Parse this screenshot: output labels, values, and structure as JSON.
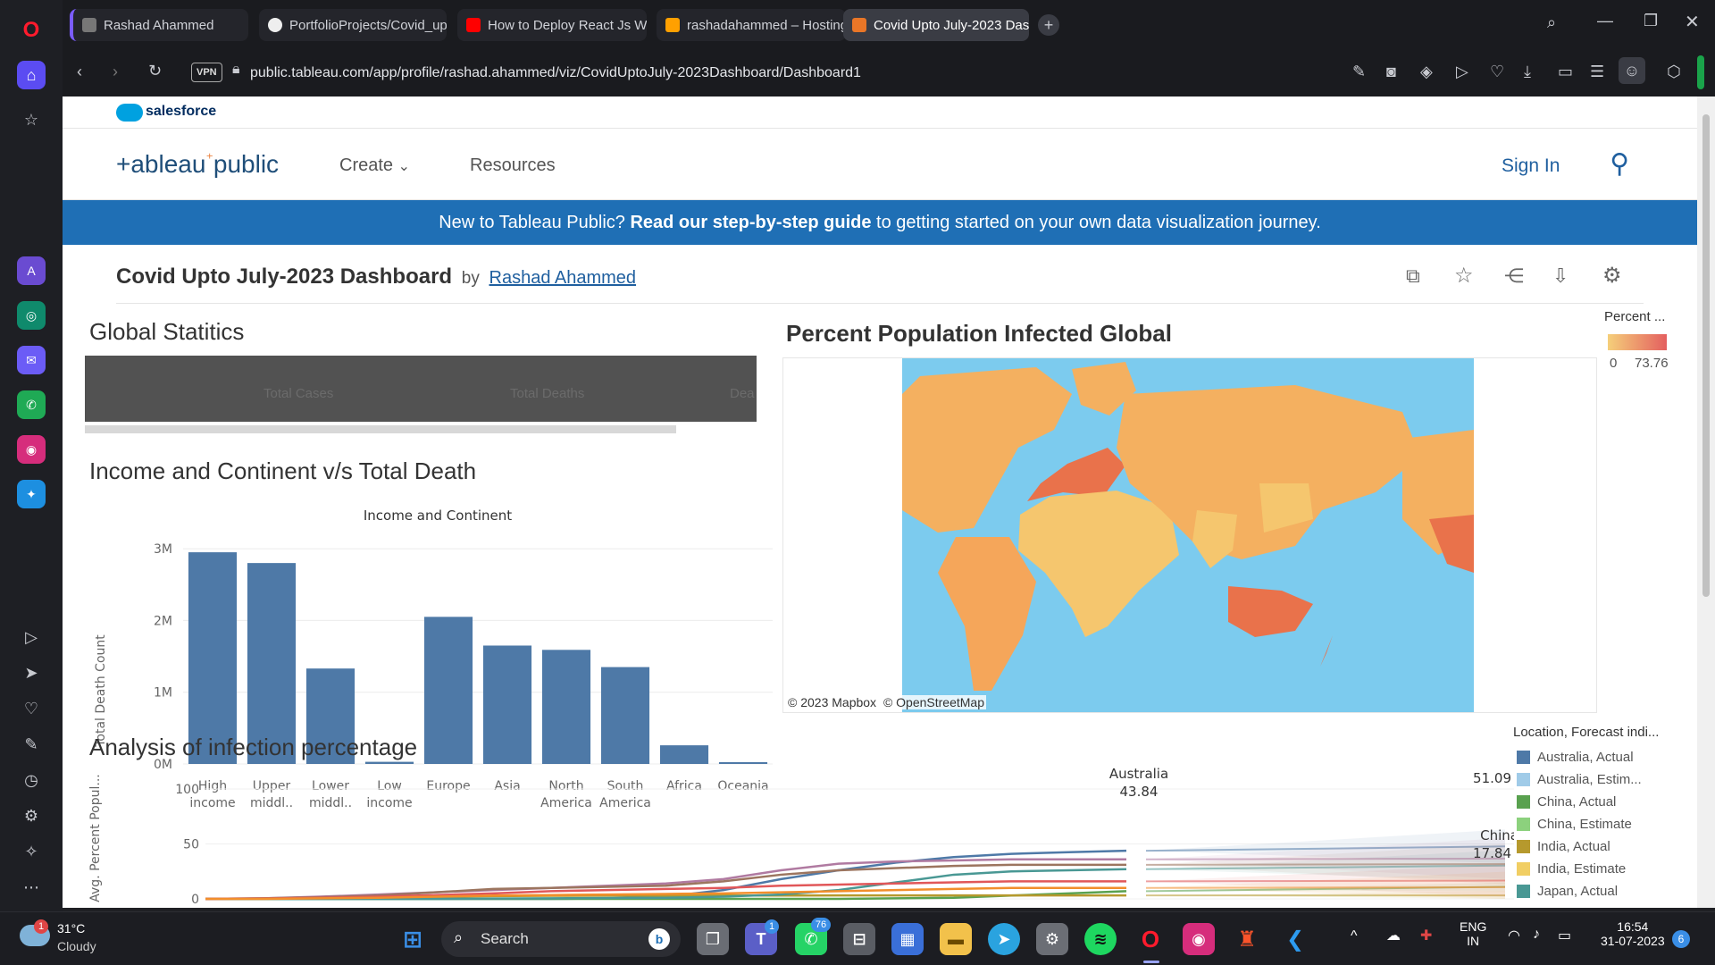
{
  "browser": {
    "tabs": [
      {
        "label": "Rashad Ahammed",
        "icon": "profile-icon"
      },
      {
        "label": "PortfolioProjects/Covid_up",
        "icon": "github-icon"
      },
      {
        "label": "How to Deploy React Js W",
        "icon": "youtube-icon"
      },
      {
        "label": "rashadahammed – Hosting",
        "icon": "firebase-icon"
      },
      {
        "label": "Covid Upto July-2023 Das",
        "icon": "tableau-icon",
        "active": true
      }
    ],
    "vpn_label": "VPN",
    "url": "public.tableau.com/app/profile/rashad.ahammed/viz/CovidUptoJuly-2023Dashboard/Dashboard1"
  },
  "salesforce": {
    "label": "salesforce"
  },
  "nav": {
    "logo_left": "+ableau",
    "logo_right": "public",
    "create": "Create",
    "resources": "Resources",
    "sign_in": "Sign In"
  },
  "banner": {
    "pre": "New to Tableau Public? ",
    "bold": "Read our step-by-step guide",
    "post": " to getting started on your own data visualization journey."
  },
  "viz": {
    "title": "Covid Upto July-2023 Dashboard",
    "by": "by",
    "author": "Rashad Ahammed"
  },
  "global_stats": {
    "title": "Global Statitics",
    "columns": [
      "Total Cases",
      "Total Deaths",
      "Dea"
    ]
  },
  "bar_section": {
    "title": "Income and Continent v/s Total Death"
  },
  "map_section": {
    "title": "Percent Population Infected Global",
    "legend_title": "Percent ...",
    "legend_min": "0",
    "legend_max": "73.76",
    "attribution_1": "© 2023 Mapbox",
    "attribution_2": "© OpenStreetMap",
    "colors": {
      "ocean": "#7ccbee",
      "low": "#f5cf7a",
      "high": "#e45f5f"
    }
  },
  "line_section": {
    "title": "Analysis of infection percentage",
    "legend_title": "Location, Forecast indi...",
    "legend": [
      {
        "label": "Australia, Actual",
        "color": "#4e79a7"
      },
      {
        "label": "Australia, Estim...",
        "color": "#a0cbe8"
      },
      {
        "label": "China, Actual",
        "color": "#59a14f"
      },
      {
        "label": "China, Estimate",
        "color": "#8cd17d"
      },
      {
        "label": "India, Actual",
        "color": "#b6992d"
      },
      {
        "label": "India, Estimate",
        "color": "#f1ce63"
      },
      {
        "label": "Japan, Actual",
        "color": "#499894"
      }
    ],
    "annotations": [
      {
        "name": "Australia",
        "value": "43.84"
      },
      {
        "name": "Australia",
        "value": "51.09"
      },
      {
        "name": "China",
        "value": "17.84"
      }
    ]
  },
  "chart_data": [
    {
      "type": "bar",
      "title": "Income and Continent",
      "xlabel": "",
      "ylabel": "Total Death Count",
      "categories": [
        [
          "High",
          "income"
        ],
        [
          "Upper",
          "middl.."
        ],
        [
          "Lower",
          "middl.."
        ],
        [
          "Low",
          "income"
        ],
        [
          "Europe"
        ],
        [
          "Asia"
        ],
        [
          "North",
          "America"
        ],
        [
          "South",
          "America"
        ],
        [
          "Africa"
        ],
        [
          "Oceania"
        ]
      ],
      "values": [
        2950000,
        2800000,
        1330000,
        30000,
        2050000,
        1650000,
        1590000,
        1350000,
        260000,
        25000
      ],
      "yticks": [
        {
          "v": 0,
          "label": "0M"
        },
        {
          "v": 1000000,
          "label": "1M"
        },
        {
          "v": 2000000,
          "label": "2M"
        },
        {
          "v": 3000000,
          "label": "3M"
        }
      ],
      "ylim": [
        0,
        3200000
      ],
      "color": "#4e79a7",
      "grid": true
    },
    {
      "type": "line",
      "title": "",
      "xlabel": "",
      "ylabel": "Avg. Percent Popul...",
      "yticks": [
        0,
        50,
        100
      ],
      "ylim": [
        0,
        100
      ],
      "series": [
        {
          "name": "Australia, Actual",
          "color": "#4e79a7",
          "values": [
            0,
            0,
            0,
            0,
            0,
            0,
            0,
            0.5,
            2,
            8,
            18,
            26,
            33,
            38,
            41,
            42.5,
            43.84
          ]
        },
        {
          "name": "China, Actual",
          "color": "#59a14f",
          "values": [
            0,
            0,
            0,
            0,
            0,
            0,
            0,
            0,
            0,
            0,
            0,
            0,
            0.5,
            1,
            3,
            5,
            7
          ]
        },
        {
          "name": "India, Actual",
          "color": "#b6992d",
          "values": [
            0,
            0,
            0.5,
            1.5,
            2,
            2.5,
            2.8,
            3,
            3,
            3,
            3,
            3.2,
            3.2,
            3.2,
            3.2,
            3.2,
            3.2
          ]
        },
        {
          "name": "Japan, Actual",
          "color": "#499894",
          "values": [
            0,
            0,
            0,
            0,
            0,
            0.3,
            0.5,
            0.8,
            1,
            2,
            4,
            8,
            15,
            22,
            25,
            26,
            27
          ]
        },
        {
          "name": "",
          "color": "#b07aa1",
          "values": [
            0,
            0.5,
            2,
            4,
            6,
            8,
            10,
            12,
            14,
            18,
            26,
            32,
            34,
            35,
            36,
            36,
            36
          ]
        },
        {
          "name": "",
          "color": "#9c755f",
          "values": [
            0,
            0.5,
            1.5,
            3,
            6,
            9,
            10,
            11,
            12,
            16,
            22,
            26,
            28,
            30,
            31,
            31,
            31
          ]
        },
        {
          "name": "",
          "color": "#e15759",
          "values": [
            0,
            0.3,
            1,
            2,
            3.5,
            5,
            7,
            8,
            9,
            10,
            12,
            13,
            14,
            15,
            16,
            16,
            16
          ]
        },
        {
          "name": "",
          "color": "#f28e2b",
          "values": [
            0,
            0,
            0.5,
            1,
            2,
            3,
            3.5,
            4,
            4.5,
            5,
            6,
            7,
            8,
            9,
            10,
            10,
            10
          ]
        }
      ]
    }
  ],
  "taskbar": {
    "weather_temp": "31°C",
    "weather_desc": "Cloudy",
    "search": "Search",
    "lang_1": "ENG",
    "lang_2": "IN",
    "time": "16:54",
    "date": "31-07-2023",
    "notif_count": "6",
    "badge_teams": "1",
    "badge_whatsapp": "76",
    "weather_badge": "1"
  }
}
